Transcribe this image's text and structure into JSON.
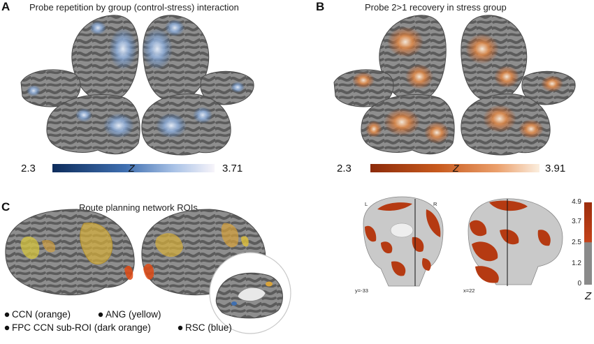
{
  "panels": {
    "a": {
      "label": "A",
      "title": "Probe repetition by group (control-stress) interaction",
      "colorbar": {
        "min": "2.3",
        "max": "3.71",
        "var": "Z",
        "colors": [
          "#0d2c5c",
          "#3f6fb0",
          "#a9c2e6",
          "#f7f4fa"
        ]
      }
    },
    "b": {
      "label": "B",
      "title": "Probe 2>1 recovery in stress group",
      "colorbar": {
        "min": "2.3",
        "max": "3.91",
        "var": "Z",
        "colors": [
          "#8c2a0a",
          "#c85a1e",
          "#eba06c",
          "#fbeedf"
        ]
      }
    },
    "c": {
      "label": "C",
      "title": "Route planning network ROIs",
      "legend": [
        "CCN (orange)",
        "ANG (yellow)",
        "FPC CCN sub-ROI (dark orange)",
        "RSC (blue)"
      ]
    }
  },
  "slices": {
    "coronal": {
      "left": "L",
      "right": "R",
      "coord": "y=-33"
    },
    "sagittal": {
      "coord": "x=22"
    },
    "scale": {
      "ticks": [
        "4.9",
        "3.7",
        "2.5",
        "1.2",
        "0"
      ],
      "var": "Z",
      "colors": {
        "high": "#a8320f",
        "low": "#8a8a8a"
      }
    }
  }
}
